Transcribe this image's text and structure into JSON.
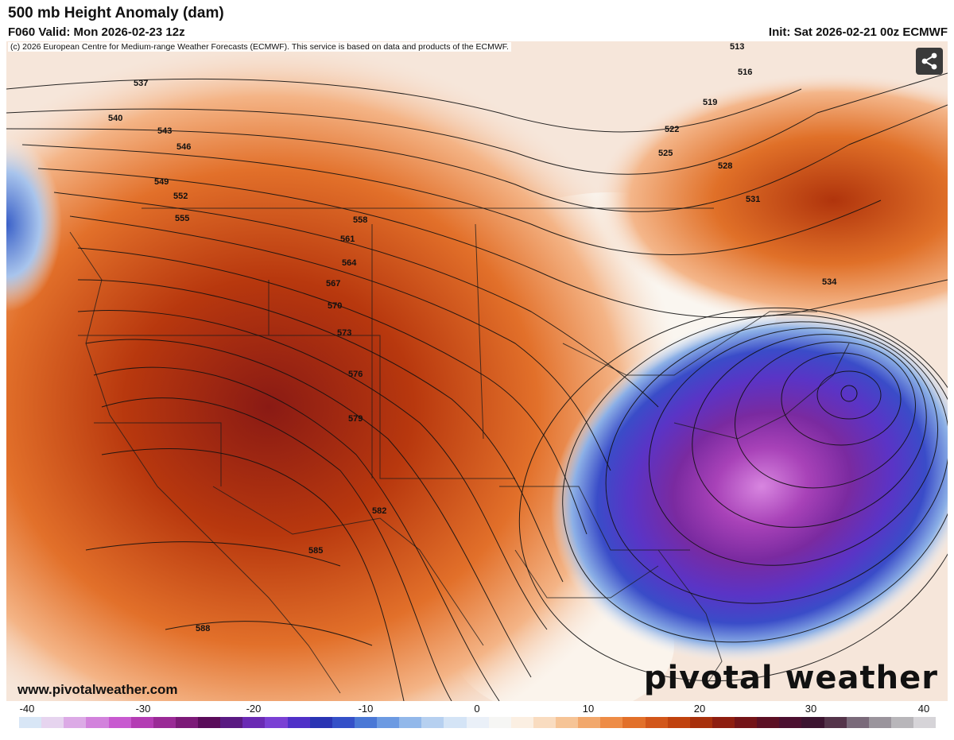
{
  "header": {
    "title": "500 mb Height Anomaly (dam)",
    "valid": "F060 Valid: Mon 2026-02-23 12z",
    "init": "Init: Sat 2026-02-21 00z ECMWF"
  },
  "map": {
    "copyright": "(c) 2026 European Centre for Medium-range Weather Forecasts (ECMWF). This service is based on data and products of the ECMWF.",
    "site_url": "www.pivotalweather.com",
    "brand": "pivotal weather",
    "contour_labels": [
      "513",
      "516",
      "519",
      "522",
      "525",
      "528",
      "531",
      "534",
      "537",
      "540",
      "543",
      "546",
      "549",
      "552",
      "555",
      "558",
      "561",
      "564",
      "567",
      "570",
      "573",
      "576",
      "579",
      "582",
      "585",
      "588"
    ],
    "ridge_center": "west-central US",
    "trough_center": "off the Mid-Atlantic coast"
  },
  "colorbar": {
    "labels": [
      "-40",
      "-30",
      "-20",
      "-10",
      "0",
      "10",
      "20",
      "30",
      "40"
    ],
    "colors": [
      "#d8e6f6",
      "#e6d4ef",
      "#dcaae6",
      "#d282dc",
      "#c85ad0",
      "#b43cb4",
      "#9a2a96",
      "#7c1a78",
      "#5a0c5a",
      "#5a1a82",
      "#6a2ab4",
      "#7a40d4",
      "#5030c8",
      "#2a34b4",
      "#3450c8",
      "#4a78d6",
      "#6c9ae2",
      "#92b8ea",
      "#b6d0f0",
      "#d4e4f6",
      "#eaf0f8",
      "#f6f6f4",
      "#fbefe2",
      "#f9dcc0",
      "#f6c496",
      "#f2a86c",
      "#ee8c46",
      "#e2702a",
      "#d2561a",
      "#c0420e",
      "#a8300c",
      "#8e1e10",
      "#741418",
      "#5c1024",
      "#4c1030",
      "#3c1430",
      "#54344a",
      "#7a6a7a",
      "#9a949c",
      "#b8b6ba",
      "#d6d4d8"
    ]
  }
}
